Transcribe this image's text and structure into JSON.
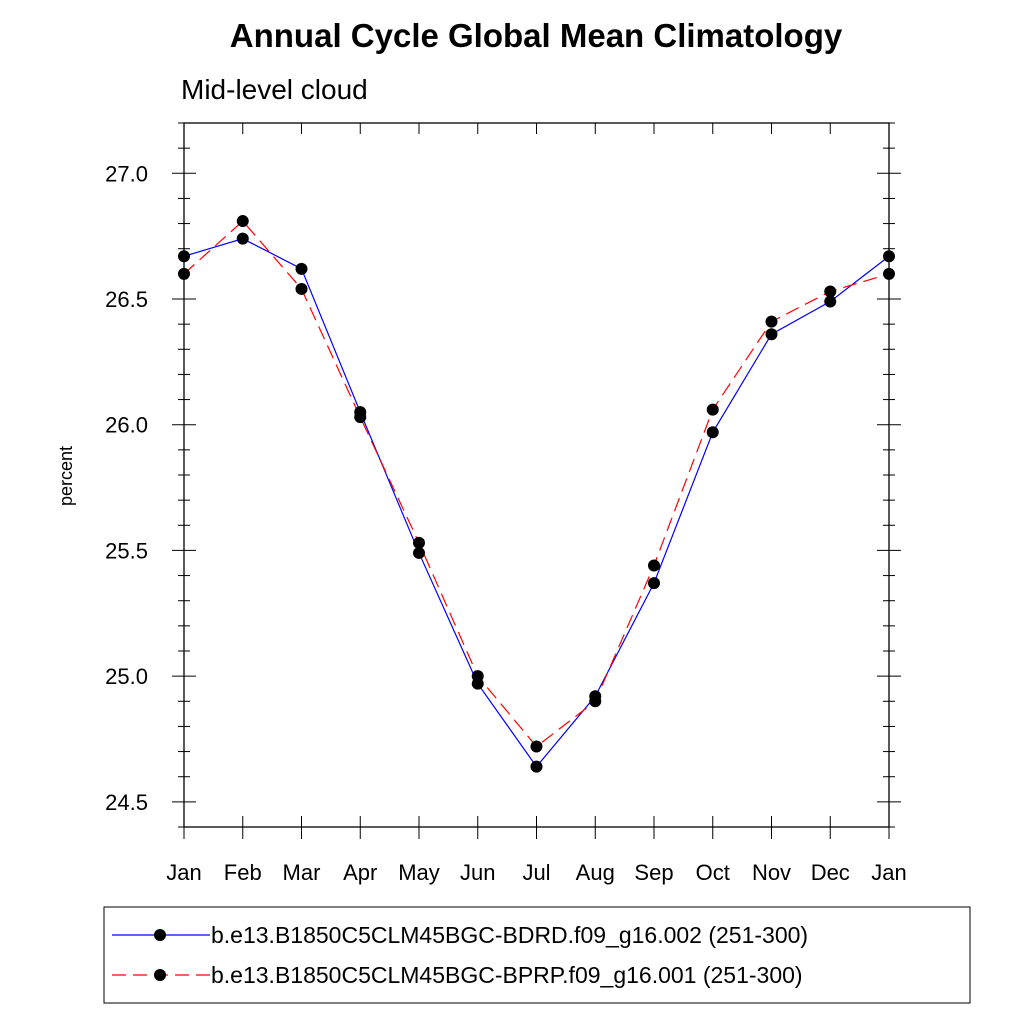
{
  "chart_data": {
    "type": "line",
    "title": "Annual Cycle Global Mean Climatology",
    "subtitle": "Mid-level cloud",
    "xlabel": "",
    "ylabel": "percent",
    "categories": [
      "Jan",
      "Feb",
      "Mar",
      "Apr",
      "May",
      "Jun",
      "Jul",
      "Aug",
      "Sep",
      "Oct",
      "Nov",
      "Dec",
      "Jan"
    ],
    "ylim": [
      24.4,
      27.2
    ],
    "yticks": [
      "24.5",
      "25.0",
      "25.5",
      "26.0",
      "26.5",
      "27.0"
    ],
    "series": [
      {
        "name": "b.e13.B1850C5CLM45BGC-BDRD.f09_g16.002 (251-300)",
        "color": "#0000ff",
        "dash": "solid",
        "values": [
          26.67,
          26.74,
          26.62,
          26.05,
          25.49,
          24.97,
          24.64,
          24.92,
          25.37,
          25.97,
          26.36,
          26.49,
          26.67
        ]
      },
      {
        "name": "b.e13.B1850C5CLM45BGC-BPRP.f09_g16.001 (251-300)",
        "color": "#ff0000",
        "dash": "dashed",
        "values": [
          26.6,
          26.81,
          26.54,
          26.03,
          25.53,
          25.0,
          24.72,
          24.9,
          25.44,
          26.06,
          26.41,
          26.53,
          26.6
        ]
      }
    ],
    "legend": "bottom"
  }
}
